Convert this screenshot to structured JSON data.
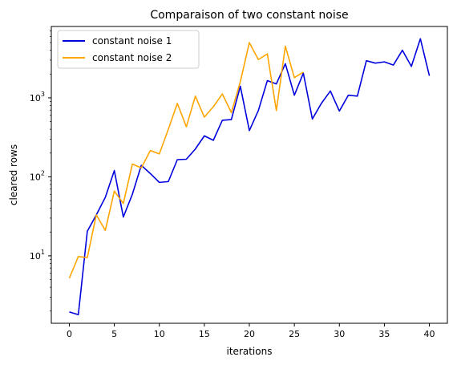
{
  "chart_data": {
    "type": "line",
    "title": "Comparaison of two constant noise",
    "xlabel": "iterations",
    "ylabel": "cleared rows",
    "yscale": "log",
    "xlim": [
      -2,
      42
    ],
    "ylim": [
      1.4,
      8000
    ],
    "x_ticks": [
      0,
      5,
      10,
      15,
      20,
      25,
      30,
      35,
      40
    ],
    "y_ticks": [
      {
        "value": 10,
        "base": "10",
        "exp": "1"
      },
      {
        "value": 100,
        "base": "10",
        "exp": "2"
      },
      {
        "value": 1000,
        "base": "10",
        "exp": "3"
      }
    ],
    "legend_position": "upper-left",
    "grid": false,
    "series": [
      {
        "name": "constant noise 1",
        "color": "#0000dd",
        "x": [
          0,
          1,
          2,
          3,
          4,
          5,
          6,
          7,
          8,
          9,
          10,
          11,
          12,
          13,
          14,
          15,
          16,
          17,
          18,
          19,
          20,
          21,
          22,
          23,
          24,
          25,
          26,
          27,
          28,
          29,
          30,
          31,
          32,
          33,
          34,
          35,
          36,
          37,
          38,
          39,
          40
        ],
        "values": [
          1.95,
          1.8,
          20.5,
          33,
          55,
          120,
          31,
          60,
          140,
          110,
          85,
          87,
          165,
          167,
          225,
          330,
          290,
          520,
          530,
          1400,
          385,
          690,
          1650,
          1500,
          2700,
          1080,
          2050,
          540,
          850,
          1220,
          680,
          1080,
          1050,
          2950,
          2750,
          2850,
          2600,
          4000,
          2500,
          5600,
          1900
        ]
      },
      {
        "name": "constant noise 2",
        "color": "#ffa500",
        "x": [
          0,
          1,
          2,
          3,
          4,
          5,
          6,
          7,
          8,
          9,
          10,
          11,
          12,
          13,
          14,
          15,
          16,
          17,
          18,
          19,
          20,
          21,
          22,
          23,
          24,
          25,
          26
        ],
        "values": [
          5.2,
          9.8,
          9.5,
          33,
          21,
          66,
          46,
          145,
          130,
          215,
          195,
          400,
          850,
          430,
          1050,
          570,
          770,
          1120,
          650,
          1600,
          5000,
          3050,
          3600,
          690,
          4500,
          1800,
          2120
        ]
      }
    ]
  }
}
